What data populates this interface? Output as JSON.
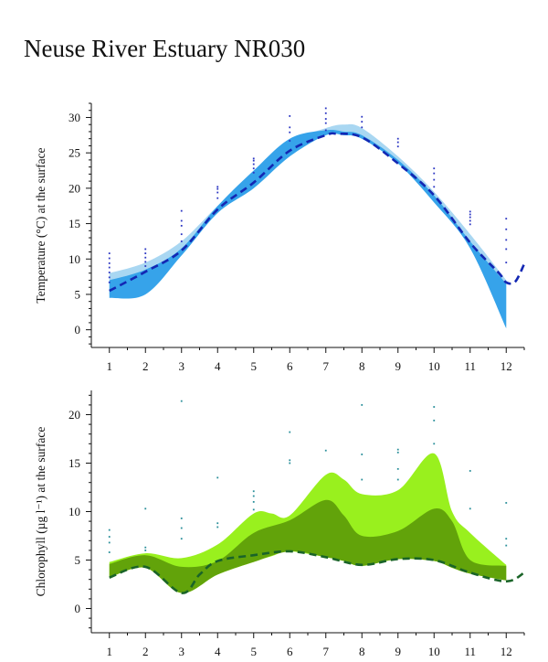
{
  "title": "Neuse River Estuary NR030",
  "colors": {
    "temp_light": "#a9d7f2",
    "temp_dark": "#36a3ea",
    "temp_line": "#1327b3",
    "temp_points": "#2b35c2",
    "chl_light": "#99f01e",
    "chl_dark": "#62a30a",
    "chl_line": "#1a6428",
    "chl_points": "#2a8f9a",
    "axis": "#111111"
  },
  "chart_data": [
    {
      "type": "area",
      "ylabel": "Temperature (°C) at the surface",
      "xlim": [
        0.5,
        12.5
      ],
      "ylim": [
        -2.5,
        32
      ],
      "x_ticks": [
        1,
        2,
        3,
        4,
        5,
        6,
        7,
        8,
        9,
        10,
        11,
        12
      ],
      "y_ticks": [
        0,
        5,
        10,
        15,
        20,
        25,
        30
      ],
      "grid": false,
      "series": [
        {
          "x": [
            1,
            2,
            3,
            4,
            5,
            6,
            7,
            7.5,
            8,
            9,
            10,
            11,
            12
          ],
          "upper": [
            8.0,
            9.5,
            12.5,
            17.5,
            22.0,
            26.5,
            28.5,
            29.0,
            28.5,
            24.5,
            19.5,
            13.5,
            7.0
          ],
          "lower": [
            5.0,
            5.5,
            10.5,
            16.5,
            20.0,
            24.5,
            27.5,
            27.5,
            27.0,
            23.5,
            18.0,
            12.0,
            0.5
          ]
        },
        {
          "x": [
            1,
            2,
            3,
            4,
            5,
            6,
            7,
            7.5,
            8,
            9,
            10,
            11,
            12
          ],
          "upper": [
            7.0,
            8.5,
            11.5,
            17.5,
            22.5,
            27.0,
            28.2,
            28.0,
            27.5,
            24.0,
            19.0,
            12.5,
            6.5
          ],
          "lower": [
            4.5,
            5.0,
            10.5,
            16.5,
            20.0,
            24.5,
            27.5,
            27.5,
            27.0,
            23.5,
            18.0,
            11.5,
            0.2
          ]
        },
        {
          "x": [
            1,
            2,
            3,
            4,
            5,
            6,
            7,
            7.3,
            8,
            9,
            10,
            11,
            11.8,
            12,
            12.25,
            12.5
          ],
          "values": [
            5.5,
            8.2,
            11.2,
            17.0,
            20.8,
            25.3,
            27.5,
            27.7,
            27.2,
            23.5,
            19.0,
            12.3,
            8.0,
            6.7,
            6.8,
            9.3
          ]
        }
      ],
      "scatter": [
        {
          "x": 1,
          "y": [
            6.7,
            7.4,
            8.1,
            8.8,
            9.4,
            10.1,
            10.8
          ]
        },
        {
          "x": 2,
          "y": [
            9.0,
            9.6,
            10.2,
            10.8,
            11.4
          ]
        },
        {
          "x": 3,
          "y": [
            12.5,
            13.5,
            14.7,
            15.4,
            16.8
          ]
        },
        {
          "x": 4,
          "y": [
            18.6,
            19.4,
            19.9,
            20.2
          ]
        },
        {
          "x": 5,
          "y": [
            22.2,
            22.8,
            23.4,
            23.9,
            24.2
          ]
        },
        {
          "x": 6,
          "y": [
            26.7,
            27.9,
            28.6,
            30.2
          ]
        },
        {
          "x": 7,
          "y": [
            28.2,
            29.2,
            29.8,
            30.6,
            31.3
          ]
        },
        {
          "x": 8,
          "y": [
            28.6,
            29.4,
            30.1
          ]
        },
        {
          "x": 9,
          "y": [
            25.9,
            26.5,
            27.0
          ]
        },
        {
          "x": 10,
          "y": [
            20.2,
            21.2,
            22.1,
            22.8
          ]
        },
        {
          "x": 11,
          "y": [
            14.9,
            15.4,
            15.9,
            16.3,
            16.7
          ]
        },
        {
          "x": 12,
          "y": [
            9.5,
            11.4,
            12.7,
            14.2,
            15.7
          ]
        }
      ]
    },
    {
      "type": "area",
      "ylabel": "Chlorophyll (µg l⁻¹) at the surface",
      "xlim": [
        0.5,
        12.5
      ],
      "ylim": [
        -2.5,
        22.5
      ],
      "x_ticks": [
        1,
        2,
        3,
        4,
        5,
        6,
        7,
        8,
        9,
        10,
        11,
        12
      ],
      "y_ticks": [
        0,
        5,
        10,
        15,
        20
      ],
      "grid": false,
      "series": [
        {
          "x": [
            1,
            2,
            3,
            4,
            5,
            5.5,
            6,
            7,
            7.5,
            8,
            9,
            10,
            10.5,
            11,
            12
          ],
          "upper": [
            4.8,
            5.7,
            5.2,
            6.6,
            9.8,
            9.8,
            9.6,
            13.8,
            13.3,
            11.8,
            12.2,
            16.0,
            10.0,
            7.8,
            4.5
          ],
          "lower": [
            3.2,
            4.2,
            1.6,
            3.5,
            4.8,
            5.4,
            5.9,
            5.3,
            4.9,
            4.4,
            5.1,
            4.9,
            4.2,
            3.6,
            2.9
          ]
        },
        {
          "x": [
            1,
            2,
            3,
            4,
            5,
            6,
            7,
            7.5,
            8,
            9,
            10,
            10.5,
            11,
            12
          ],
          "upper": [
            4.6,
            5.5,
            4.3,
            4.9,
            7.8,
            9.1,
            11.2,
            9.6,
            7.5,
            8.0,
            10.3,
            9.0,
            5.0,
            4.4
          ],
          "lower": [
            3.2,
            4.2,
            1.6,
            3.5,
            4.8,
            5.9,
            5.3,
            4.9,
            4.4,
            5.1,
            4.9,
            4.2,
            3.6,
            2.9
          ]
        },
        {
          "x": [
            1,
            2,
            3,
            3.5,
            4,
            5,
            6,
            7,
            8,
            9,
            10,
            11,
            12,
            12.5
          ],
          "values": [
            3.2,
            4.3,
            1.6,
            3.5,
            4.9,
            5.5,
            5.9,
            5.3,
            4.5,
            5.1,
            5.0,
            3.7,
            2.8,
            3.7
          ]
        }
      ],
      "scatter": [
        {
          "x": 1,
          "y": [
            5.8,
            6.8,
            7.4,
            8.1
          ]
        },
        {
          "x": 2,
          "y": [
            6.0,
            6.3,
            10.3
          ]
        },
        {
          "x": 3,
          "y": [
            7.2,
            8.3,
            9.3,
            21.4
          ]
        },
        {
          "x": 4,
          "y": [
            8.4,
            8.8,
            13.5
          ]
        },
        {
          "x": 5,
          "y": [
            10.2,
            11.0,
            11.6,
            12.1
          ]
        },
        {
          "x": 6,
          "y": [
            15.0,
            15.3,
            18.2
          ]
        },
        {
          "x": 7,
          "y": [
            16.3
          ]
        },
        {
          "x": 8,
          "y": [
            13.3,
            15.9,
            21.0
          ]
        },
        {
          "x": 9,
          "y": [
            13.3,
            14.4,
            16.1,
            16.4
          ]
        },
        {
          "x": 10,
          "y": [
            17.0,
            19.4,
            20.8
          ]
        },
        {
          "x": 11,
          "y": [
            10.3,
            14.2
          ]
        },
        {
          "x": 12,
          "y": [
            6.5,
            7.2,
            10.9
          ]
        }
      ]
    }
  ]
}
